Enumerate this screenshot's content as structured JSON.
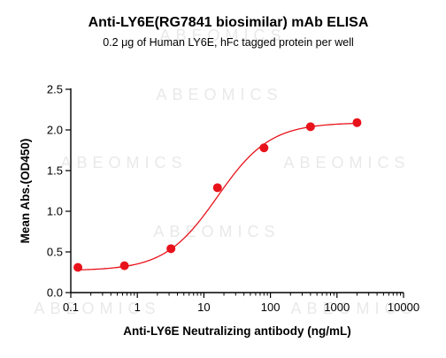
{
  "chart_data": {
    "type": "scatter",
    "title": "Anti-LY6E(RG7841 biosimilar) mAb ELISA",
    "subtitle": "0.2 μg of Human LY6E, hFc tagged protein per well",
    "xlabel": "Anti-LY6E Neutralizing antibody (ng/mL)",
    "ylabel": "Mean Abs.(OD450)",
    "x_scale": "log",
    "xlim": [
      0.1,
      10000
    ],
    "ylim": [
      0,
      2.5
    ],
    "x_ticks": [
      0.1,
      1,
      10,
      100,
      1000,
      10000
    ],
    "x_tick_labels": [
      "0.1",
      "1",
      "10",
      "100",
      "1000",
      "10000"
    ],
    "y_ticks": [
      0,
      0.5,
      1,
      1.5,
      2,
      2.5
    ],
    "y_tick_labels": [
      "0.0",
      "0.5",
      "1.0",
      "1.5",
      "2.0",
      "2.5"
    ],
    "watermark": "ABEOMICS",
    "series": [
      {
        "color": "#e8121b",
        "x": [
          0.128,
          0.64,
          3.2,
          16,
          80,
          400,
          2000
        ],
        "y": [
          0.31,
          0.33,
          0.54,
          1.29,
          1.78,
          2.04,
          2.09
        ]
      }
    ],
    "fit": {
      "type": "4PL",
      "color": "#e8121b",
      "bottom": 0.27,
      "top": 2.09,
      "ec50": 16,
      "hill": 1.1
    },
    "grid": false,
    "legend": "none"
  }
}
